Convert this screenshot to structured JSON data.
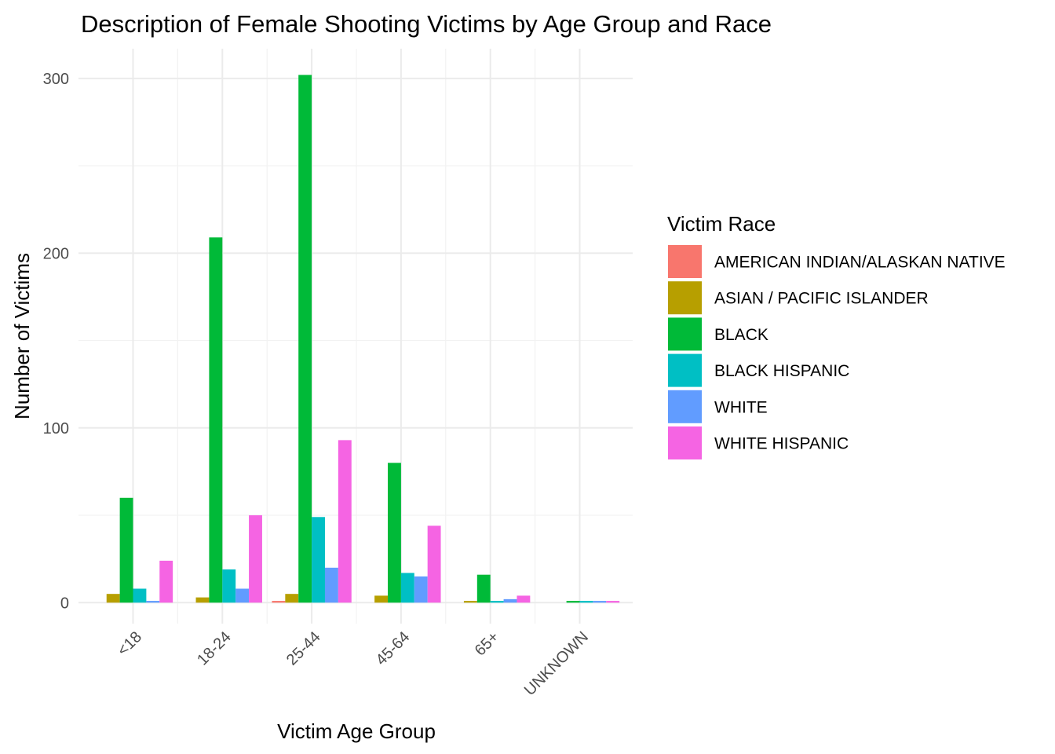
{
  "chart_data": {
    "type": "bar",
    "title": "Description of Female Shooting Victims by Age Group and Race",
    "xlabel": "Victim Age Group",
    "ylabel": "Number of Victims",
    "ylim": [
      -12,
      317
    ],
    "yticks": [
      0,
      100,
      200,
      300
    ],
    "grid": true,
    "legend_title": "Victim Race",
    "legend_position": "right",
    "categories": [
      "<18",
      "18-24",
      "25-44",
      "45-64",
      "65+",
      "UNKNOWN"
    ],
    "series": [
      {
        "name": "AMERICAN INDIAN/ALASKAN NATIVE",
        "color": "#F8766D",
        "values": [
          null,
          null,
          1,
          null,
          null,
          null
        ]
      },
      {
        "name": "ASIAN / PACIFIC ISLANDER",
        "color": "#B79F00",
        "values": [
          5,
          3,
          5,
          4,
          1,
          null
        ]
      },
      {
        "name": "BLACK",
        "color": "#00BA38",
        "values": [
          60,
          209,
          302,
          80,
          16,
          1
        ]
      },
      {
        "name": "BLACK HISPANIC",
        "color": "#00BFC4",
        "values": [
          8,
          19,
          49,
          17,
          1,
          1
        ]
      },
      {
        "name": "WHITE",
        "color": "#619CFF",
        "values": [
          1,
          8,
          20,
          15,
          2,
          1
        ]
      },
      {
        "name": "WHITE HISPANIC",
        "color": "#F564E3",
        "values": [
          24,
          50,
          93,
          44,
          4,
          1
        ]
      }
    ]
  }
}
